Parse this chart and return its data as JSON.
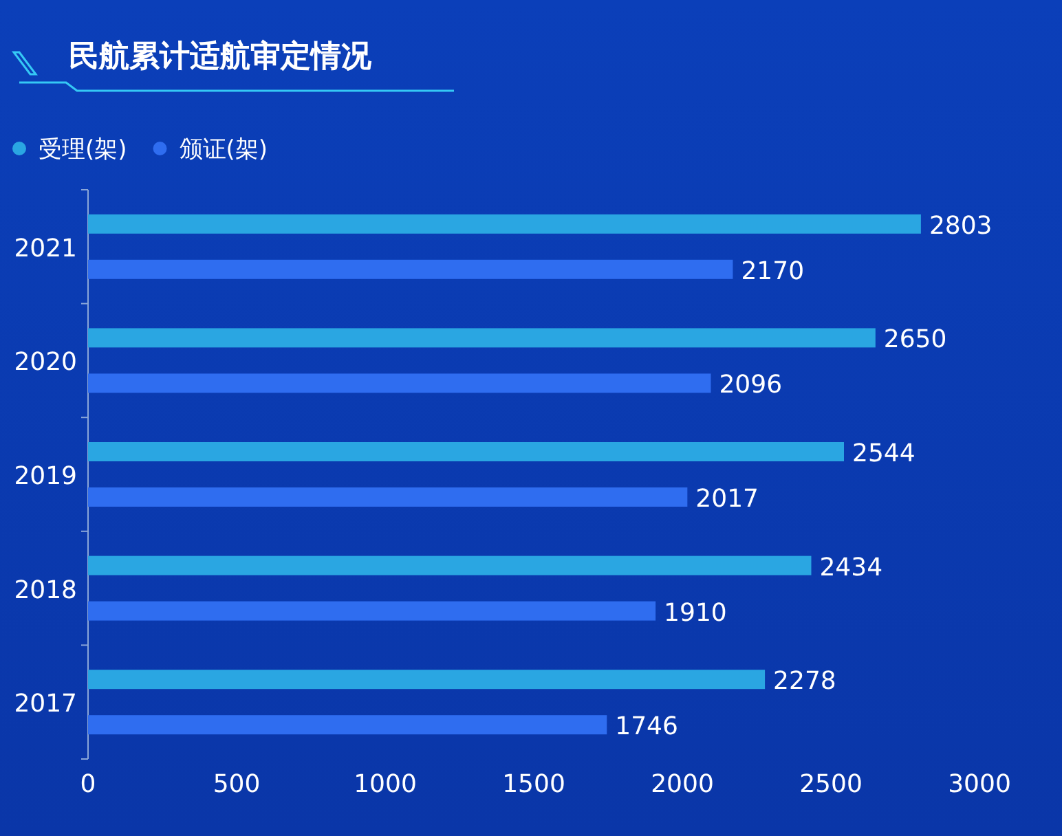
{
  "chart_data": {
    "type": "bar",
    "orientation": "horizontal",
    "title": "民航累计适航审定情况",
    "categories": [
      "2021",
      "2020",
      "2019",
      "2018",
      "2017"
    ],
    "series": [
      {
        "name": "受理(架)",
        "color": "#2aa6e2",
        "values": [
          2803,
          2650,
          2544,
          2434,
          2278
        ]
      },
      {
        "name": "颁证(架)",
        "color": "#2f6df0",
        "values": [
          2170,
          2096,
          2017,
          1910,
          1746
        ]
      }
    ],
    "xlim": [
      0,
      3000
    ],
    "xticks": [
      0,
      500,
      1000,
      1500,
      2000,
      2500,
      3000
    ],
    "data_labels": true,
    "legend": "top left"
  }
}
